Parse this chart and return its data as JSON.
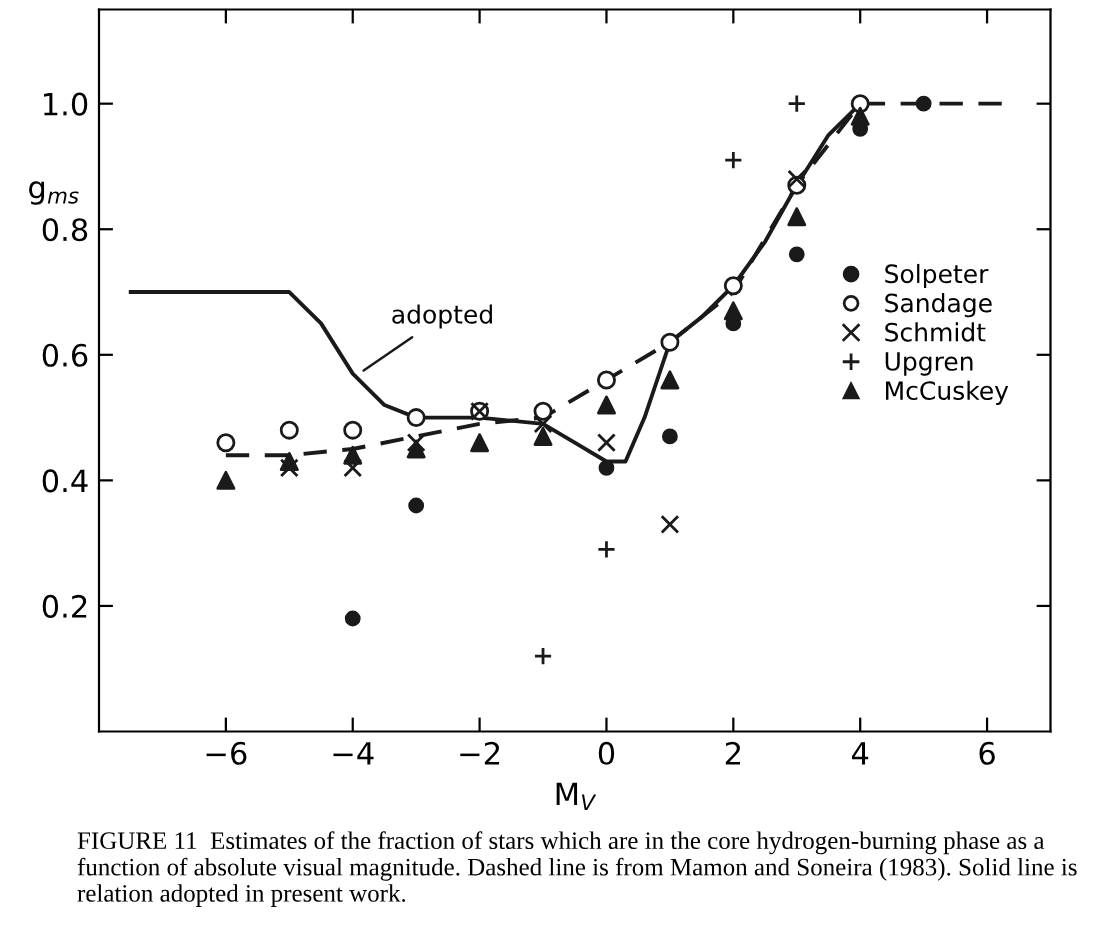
{
  "chart_data": {
    "type": "scatter",
    "xlabel": "M$_{V}$",
    "ylabel": "g$_{ms}$",
    "xlim": [
      -8,
      7
    ],
    "ylim": [
      0,
      1.15
    ],
    "xticks": [
      {
        "value": -6,
        "label": "−6"
      },
      {
        "value": -4,
        "label": "−4"
      },
      {
        "value": -2,
        "label": "−2"
      },
      0,
      2,
      4,
      6
    ],
    "yticks": [
      0.2,
      0.4,
      0.6,
      0.8,
      {
        "value": 1,
        "label": "1.0"
      }
    ],
    "legend": "right",
    "series": [
      {
        "type": "line",
        "line_style": "solid",
        "marker": "none",
        "color": "#1a1a1a",
        "x": [
          -7.5,
          -5.0,
          -4.5,
          -4.0,
          -3.5,
          -3.0,
          -2.0,
          -1.0,
          -0.5,
          0.0,
          0.3,
          0.6,
          1.0,
          1.5,
          2.0,
          2.5,
          3.0,
          3.5,
          4.0
        ],
        "values": [
          0.7,
          0.7,
          0.65,
          0.57,
          0.52,
          0.5,
          0.5,
          0.49,
          0.46,
          0.43,
          0.43,
          0.5,
          0.62,
          0.66,
          0.71,
          0.78,
          0.87,
          0.95,
          1.0
        ]
      },
      {
        "type": "line",
        "line_style": "dashed",
        "marker": "none",
        "color": "#1a1a1a",
        "x": [
          -6,
          -5,
          -4,
          -3,
          -2,
          -1,
          0,
          1,
          2,
          3,
          4,
          6.3
        ],
        "values": [
          0.44,
          0.44,
          0.45,
          0.47,
          0.49,
          0.5,
          0.56,
          0.62,
          0.7,
          0.87,
          1.0,
          1.0
        ]
      },
      {
        "name": "Solpeter",
        "marker": "circle",
        "color": "#1a1a1a",
        "x": [
          -4,
          -3,
          0,
          1,
          2,
          3,
          4,
          5
        ],
        "values": [
          0.18,
          0.36,
          0.42,
          0.47,
          0.65,
          0.76,
          0.96,
          1.0
        ]
      },
      {
        "name": "Sandage",
        "marker": "circle",
        "color": "#ffffff",
        "x": [
          -6,
          -5,
          -4,
          -3,
          -2,
          -1,
          0,
          1,
          2,
          3,
          4
        ],
        "values": [
          0.46,
          0.48,
          0.48,
          0.5,
          0.51,
          0.51,
          0.56,
          0.62,
          0.71,
          0.87,
          1.0
        ]
      },
      {
        "name": "Schmidt",
        "marker": "cross",
        "color": "#1a1a1a",
        "x": [
          -5,
          -4,
          -3,
          -2,
          -1,
          0,
          1,
          3
        ],
        "values": [
          0.42,
          0.42,
          0.46,
          0.51,
          0.49,
          0.46,
          0.33,
          0.88
        ]
      },
      {
        "name": "Upgren",
        "marker": "plus",
        "color": "#1a1a1a",
        "x": [
          -1,
          0,
          2,
          3
        ],
        "values": [
          0.12,
          0.29,
          0.91,
          1.0
        ]
      },
      {
        "name": "McCuskey",
        "marker": "triangle",
        "color": "#1a1a1a",
        "x": [
          -6,
          -5,
          -4,
          -3,
          -2,
          -1,
          0,
          1,
          2,
          3,
          4
        ],
        "values": [
          0.4,
          0.43,
          0.44,
          0.45,
          0.46,
          0.47,
          0.52,
          0.56,
          0.67,
          0.82,
          0.98
        ]
      }
    ],
    "annotations": [
      {
        "text": "adopted",
        "x": -3.9,
        "y": 0.57
      },
      "FIGURE 11  Estimates of the fraction of stars which are in the core hydrogen-burning phase as a function of absolute visual magnitude. Dashed line is from Mamon and Soneira (1983). Solid line is relation adopted in present work."
    ]
  }
}
